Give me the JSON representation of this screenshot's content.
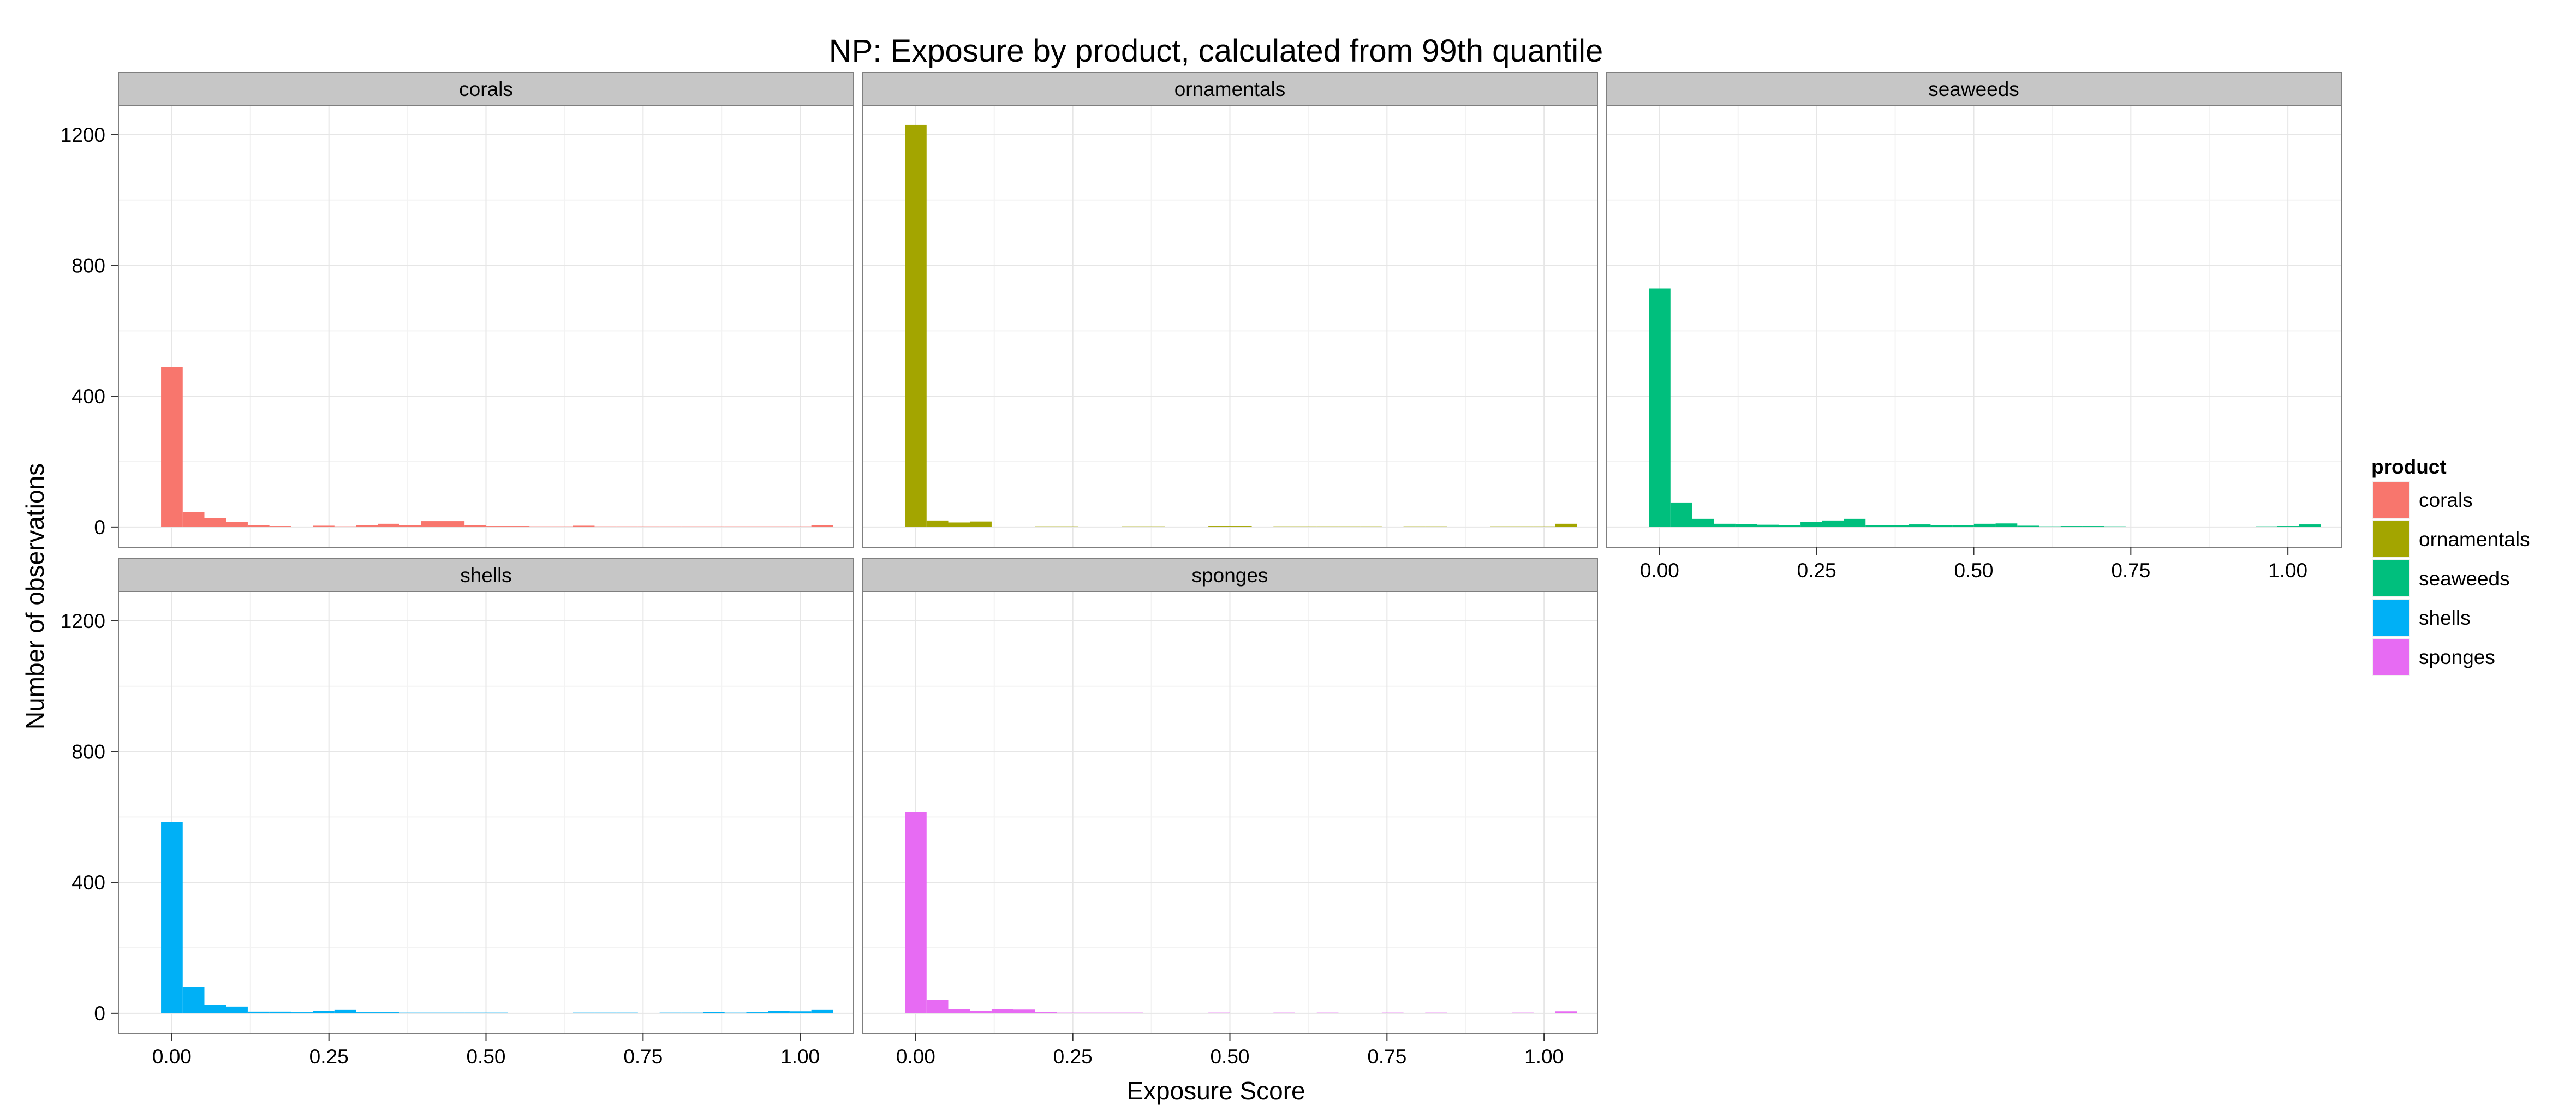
{
  "chart_data": {
    "type": "bar",
    "title": "NP: Exposure by product, calculated from 99th quantile",
    "xlabel": "Exposure Score",
    "ylabel": "Number of observations",
    "xlim": [
      -0.085,
      1.085
    ],
    "ylim": [
      -62,
      1290
    ],
    "x_ticks": [
      0.0,
      0.25,
      0.5,
      0.75,
      1.0
    ],
    "x_tick_labels": [
      "0.00",
      "0.25",
      "0.50",
      "0.75",
      "1.00"
    ],
    "y_ticks": [
      0,
      400,
      800,
      1200
    ],
    "y_tick_labels": [
      "0",
      "400",
      "800",
      "1200"
    ],
    "grid": true,
    "bin_width": 0.0345,
    "bin_start": -0.0172,
    "legend": {
      "title": "product",
      "position": "right"
    },
    "facets": [
      {
        "name": "corals",
        "color": "#F8766D",
        "values": [
          490,
          45,
          27,
          15,
          5,
          3,
          0,
          4,
          2,
          6,
          10,
          6,
          18,
          18,
          6,
          3,
          3,
          2,
          2,
          4,
          2,
          2,
          2,
          2,
          2,
          2,
          2,
          2,
          2,
          2,
          6
        ]
      },
      {
        "name": "ornamentals",
        "color": "#A3A500",
        "values": [
          1230,
          20,
          14,
          17,
          0,
          0,
          2,
          2,
          0,
          0,
          2,
          2,
          0,
          0,
          3,
          3,
          0,
          2,
          2,
          2,
          2,
          2,
          0,
          2,
          2,
          0,
          0,
          2,
          2,
          2,
          10
        ]
      },
      {
        "name": "seaweeds",
        "color": "#00BF7D",
        "values": [
          730,
          75,
          25,
          10,
          9,
          7,
          6,
          15,
          20,
          25,
          6,
          5,
          8,
          6,
          6,
          10,
          11,
          4,
          2,
          3,
          3,
          2,
          0,
          0,
          0,
          0,
          0,
          0,
          2,
          3,
          8
        ]
      },
      {
        "name": "shells",
        "color": "#00B0F6",
        "values": [
          585,
          80,
          25,
          20,
          5,
          5,
          3,
          8,
          10,
          3,
          3,
          2,
          2,
          2,
          2,
          2,
          0,
          0,
          0,
          2,
          2,
          2,
          0,
          2,
          2,
          4,
          2,
          3,
          8,
          6,
          10
        ]
      },
      {
        "name": "sponges",
        "color": "#E76BF3",
        "values": [
          615,
          40,
          13,
          8,
          12,
          11,
          3,
          2,
          2,
          2,
          2,
          0,
          0,
          0,
          2,
          0,
          0,
          2,
          0,
          2,
          0,
          0,
          2,
          0,
          2,
          0,
          0,
          0,
          2,
          0,
          6
        ]
      }
    ]
  }
}
